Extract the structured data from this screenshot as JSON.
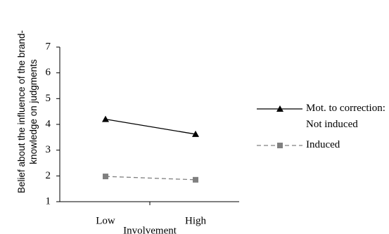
{
  "chart_data": {
    "type": "line",
    "categories": [
      "Low",
      "High"
    ],
    "x_label": "Involvement",
    "y_label": "Belief about the influence of the brand-knowledge on judgments",
    "ylim": [
      1,
      7
    ],
    "yticks": [
      1,
      2,
      3,
      4,
      5,
      6,
      7
    ],
    "legend": "right",
    "series": [
      {
        "name": "Mot. to correction: Not induced",
        "color": "#000000",
        "line_style": "solid",
        "marker": "triangle",
        "values": [
          4.2,
          3.62
        ]
      },
      {
        "name": "Induced",
        "color": "#808080",
        "line_style": "dashed",
        "marker": "square",
        "values": [
          1.98,
          1.85
        ]
      }
    ]
  }
}
